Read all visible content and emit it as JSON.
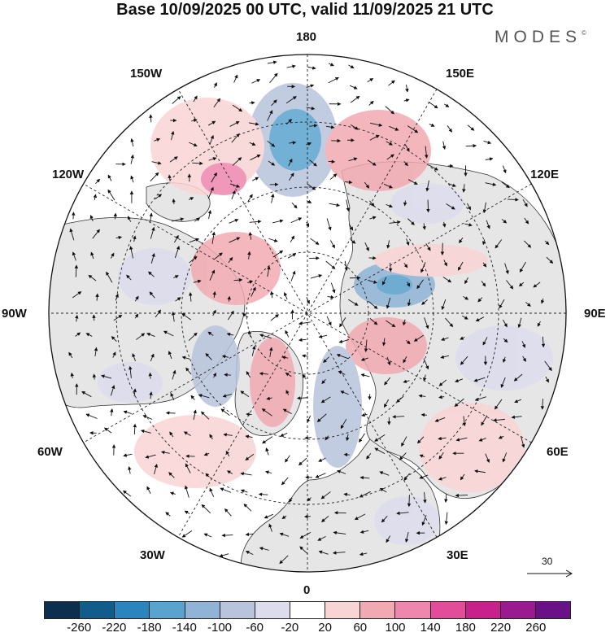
{
  "header": {
    "title": "Base 10/09/2025 00 UTC, valid 11/09/2025 21 UTC",
    "brand": "MODES",
    "brand_mark": "©"
  },
  "map": {
    "projection": "north-polar-stereographic",
    "longitude_labels": {
      "top": "180",
      "bottom": "0",
      "left": "90W",
      "right": "90E",
      "upper_left_1": "150W",
      "upper_left_2": "120W",
      "upper_right_1": "150E",
      "upper_right_2": "120E",
      "lower_left_1": "60W",
      "lower_left_2": "30W",
      "lower_right_1": "60E",
      "lower_right_2": "30E"
    },
    "reference_vector": "30"
  },
  "colorbar": {
    "colors": [
      "#0d2f4f",
      "#125c8c",
      "#2a84bd",
      "#5aa3cf",
      "#8fb4d6",
      "#b8c4dc",
      "#dcdced",
      "#ffffff",
      "#f9d4d4",
      "#f2aab2",
      "#ee87ae",
      "#e24d9a",
      "#c9218c",
      "#9a1a8f",
      "#6a1187"
    ],
    "tick_labels": [
      "-260",
      "-220",
      "-180",
      "-140",
      "-100",
      "-60",
      "-20",
      "20",
      "60",
      "100",
      "140",
      "180",
      "220",
      "260"
    ]
  }
}
